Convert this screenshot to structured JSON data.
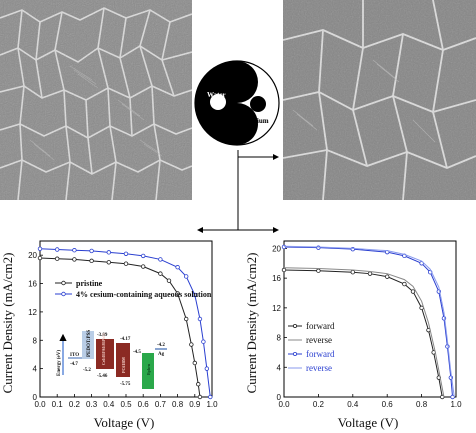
{
  "figure": {
    "symbol": {
      "label_left": "Water",
      "label_right": "Cesium"
    }
  },
  "left_chart": {
    "xlabel": "Voltage (V)",
    "ylabel": "Current Density (mA/cm2)",
    "legend": [
      "pristine",
      "4% cesium-containing aqueous solution"
    ],
    "inset": {
      "ylabel": "Energy (eV)",
      "layers": [
        {
          "name": "ITO",
          "top": "-4.7",
          "bottom": "",
          "color": "#b9cde6"
        },
        {
          "name": "PEDOT:PSS",
          "top": "",
          "bottom": "-5.2",
          "color": "#b9cde6"
        },
        {
          "name": "Cs0.05FA0.95PbI3",
          "top": "-3.89",
          "bottom": "-5.46",
          "color": "#8b2a23"
        },
        {
          "name": "PC61BM",
          "top": "-4.17",
          "bottom": "-5.75",
          "color": "#8b2a23"
        },
        {
          "name": "Bphen",
          "top": "-4.5",
          "bottom": "",
          "color": "#2aa84a"
        },
        {
          "name": "Ag",
          "top": "-4.2",
          "bottom": "",
          "color": "#3a66b0"
        }
      ]
    }
  },
  "right_chart": {
    "xlabel": "Voltage (V)",
    "ylabel": "Current Density (mA/cm2)",
    "legend": [
      "forward",
      "reverse",
      "forward",
      "reverse"
    ]
  },
  "chart_data": [
    {
      "type": "line",
      "xlabel": "Voltage (V)",
      "ylabel": "Current Density (mA/cm2)",
      "xlim": [
        0.0,
        1.0
      ],
      "ylim": [
        0,
        22
      ],
      "xticks": [
        "0.0",
        "0.1",
        "0.2",
        "0.3",
        "0.4",
        "0.5",
        "0.6",
        "0.7",
        "0.8",
        "0.9",
        "1.0"
      ],
      "yticks": [
        "0",
        "4",
        "8",
        "12",
        "16",
        "20"
      ],
      "series": [
        {
          "name": "pristine",
          "color": "#222222",
          "marker": "circle",
          "jsc": 19.6,
          "voc": 0.93,
          "x": [
            0.0,
            0.1,
            0.2,
            0.3,
            0.4,
            0.5,
            0.6,
            0.7,
            0.75,
            0.8,
            0.85,
            0.88,
            0.9,
            0.92,
            0.93
          ],
          "y": [
            19.6,
            19.5,
            19.4,
            19.2,
            19.0,
            18.8,
            18.4,
            17.4,
            16.4,
            14.6,
            11.0,
            7.4,
            4.8,
            1.8,
            0.0
          ]
        },
        {
          "name": "4% cesium-containing aqueous solution",
          "color": "#2a3fd0",
          "marker": "circle",
          "jsc": 20.9,
          "voc": 0.99,
          "x": [
            0.0,
            0.1,
            0.2,
            0.3,
            0.4,
            0.5,
            0.6,
            0.7,
            0.8,
            0.85,
            0.9,
            0.93,
            0.95,
            0.97,
            0.99
          ],
          "y": [
            20.9,
            20.8,
            20.7,
            20.6,
            20.4,
            20.2,
            19.9,
            19.4,
            18.3,
            17.0,
            14.4,
            11.0,
            7.8,
            4.0,
            0.0
          ]
        }
      ]
    },
    {
      "type": "line",
      "xlabel": "Voltage (V)",
      "ylabel": "Current Density (mA/cm2)",
      "xlim": [
        0.0,
        1.0
      ],
      "ylim": [
        0,
        21
      ],
      "xticks": [
        "0.0",
        "0.2",
        "0.4",
        "0.6",
        "0.8",
        "1.0"
      ],
      "yticks": [
        "0",
        "4",
        "8",
        "12",
        "16",
        "20"
      ],
      "series": [
        {
          "name": "forward",
          "color": "#222222",
          "marker": "circle",
          "x": [
            0.0,
            0.2,
            0.4,
            0.5,
            0.6,
            0.7,
            0.75,
            0.8,
            0.84,
            0.87,
            0.9,
            0.92
          ],
          "y": [
            17.1,
            17.0,
            16.8,
            16.6,
            16.2,
            15.2,
            14.2,
            12.0,
            9.0,
            6.0,
            2.6,
            0.0
          ]
        },
        {
          "name": "reverse",
          "color": "#888888",
          "marker": "none",
          "x": [
            0.0,
            0.2,
            0.4,
            0.5,
            0.6,
            0.7,
            0.75,
            0.8,
            0.84,
            0.88,
            0.91,
            0.93
          ],
          "y": [
            17.4,
            17.3,
            17.1,
            16.9,
            16.6,
            15.8,
            14.9,
            12.9,
            10.0,
            6.0,
            2.4,
            0.0
          ]
        },
        {
          "name": "forward",
          "color": "#2a3fd0",
          "marker": "circle",
          "x": [
            0.0,
            0.2,
            0.4,
            0.6,
            0.7,
            0.8,
            0.85,
            0.9,
            0.93,
            0.95,
            0.97,
            0.98
          ],
          "y": [
            20.2,
            20.1,
            19.9,
            19.5,
            19.0,
            18.0,
            16.8,
            14.2,
            10.6,
            6.8,
            2.6,
            0.0
          ]
        },
        {
          "name": "reverse",
          "color": "#8899ee",
          "marker": "none",
          "x": [
            0.0,
            0.2,
            0.4,
            0.6,
            0.7,
            0.8,
            0.85,
            0.9,
            0.93,
            0.95,
            0.97,
            0.99
          ],
          "y": [
            20.3,
            20.2,
            20.0,
            19.7,
            19.2,
            18.3,
            17.2,
            14.8,
            11.4,
            7.6,
            3.4,
            0.0
          ]
        }
      ]
    }
  ]
}
